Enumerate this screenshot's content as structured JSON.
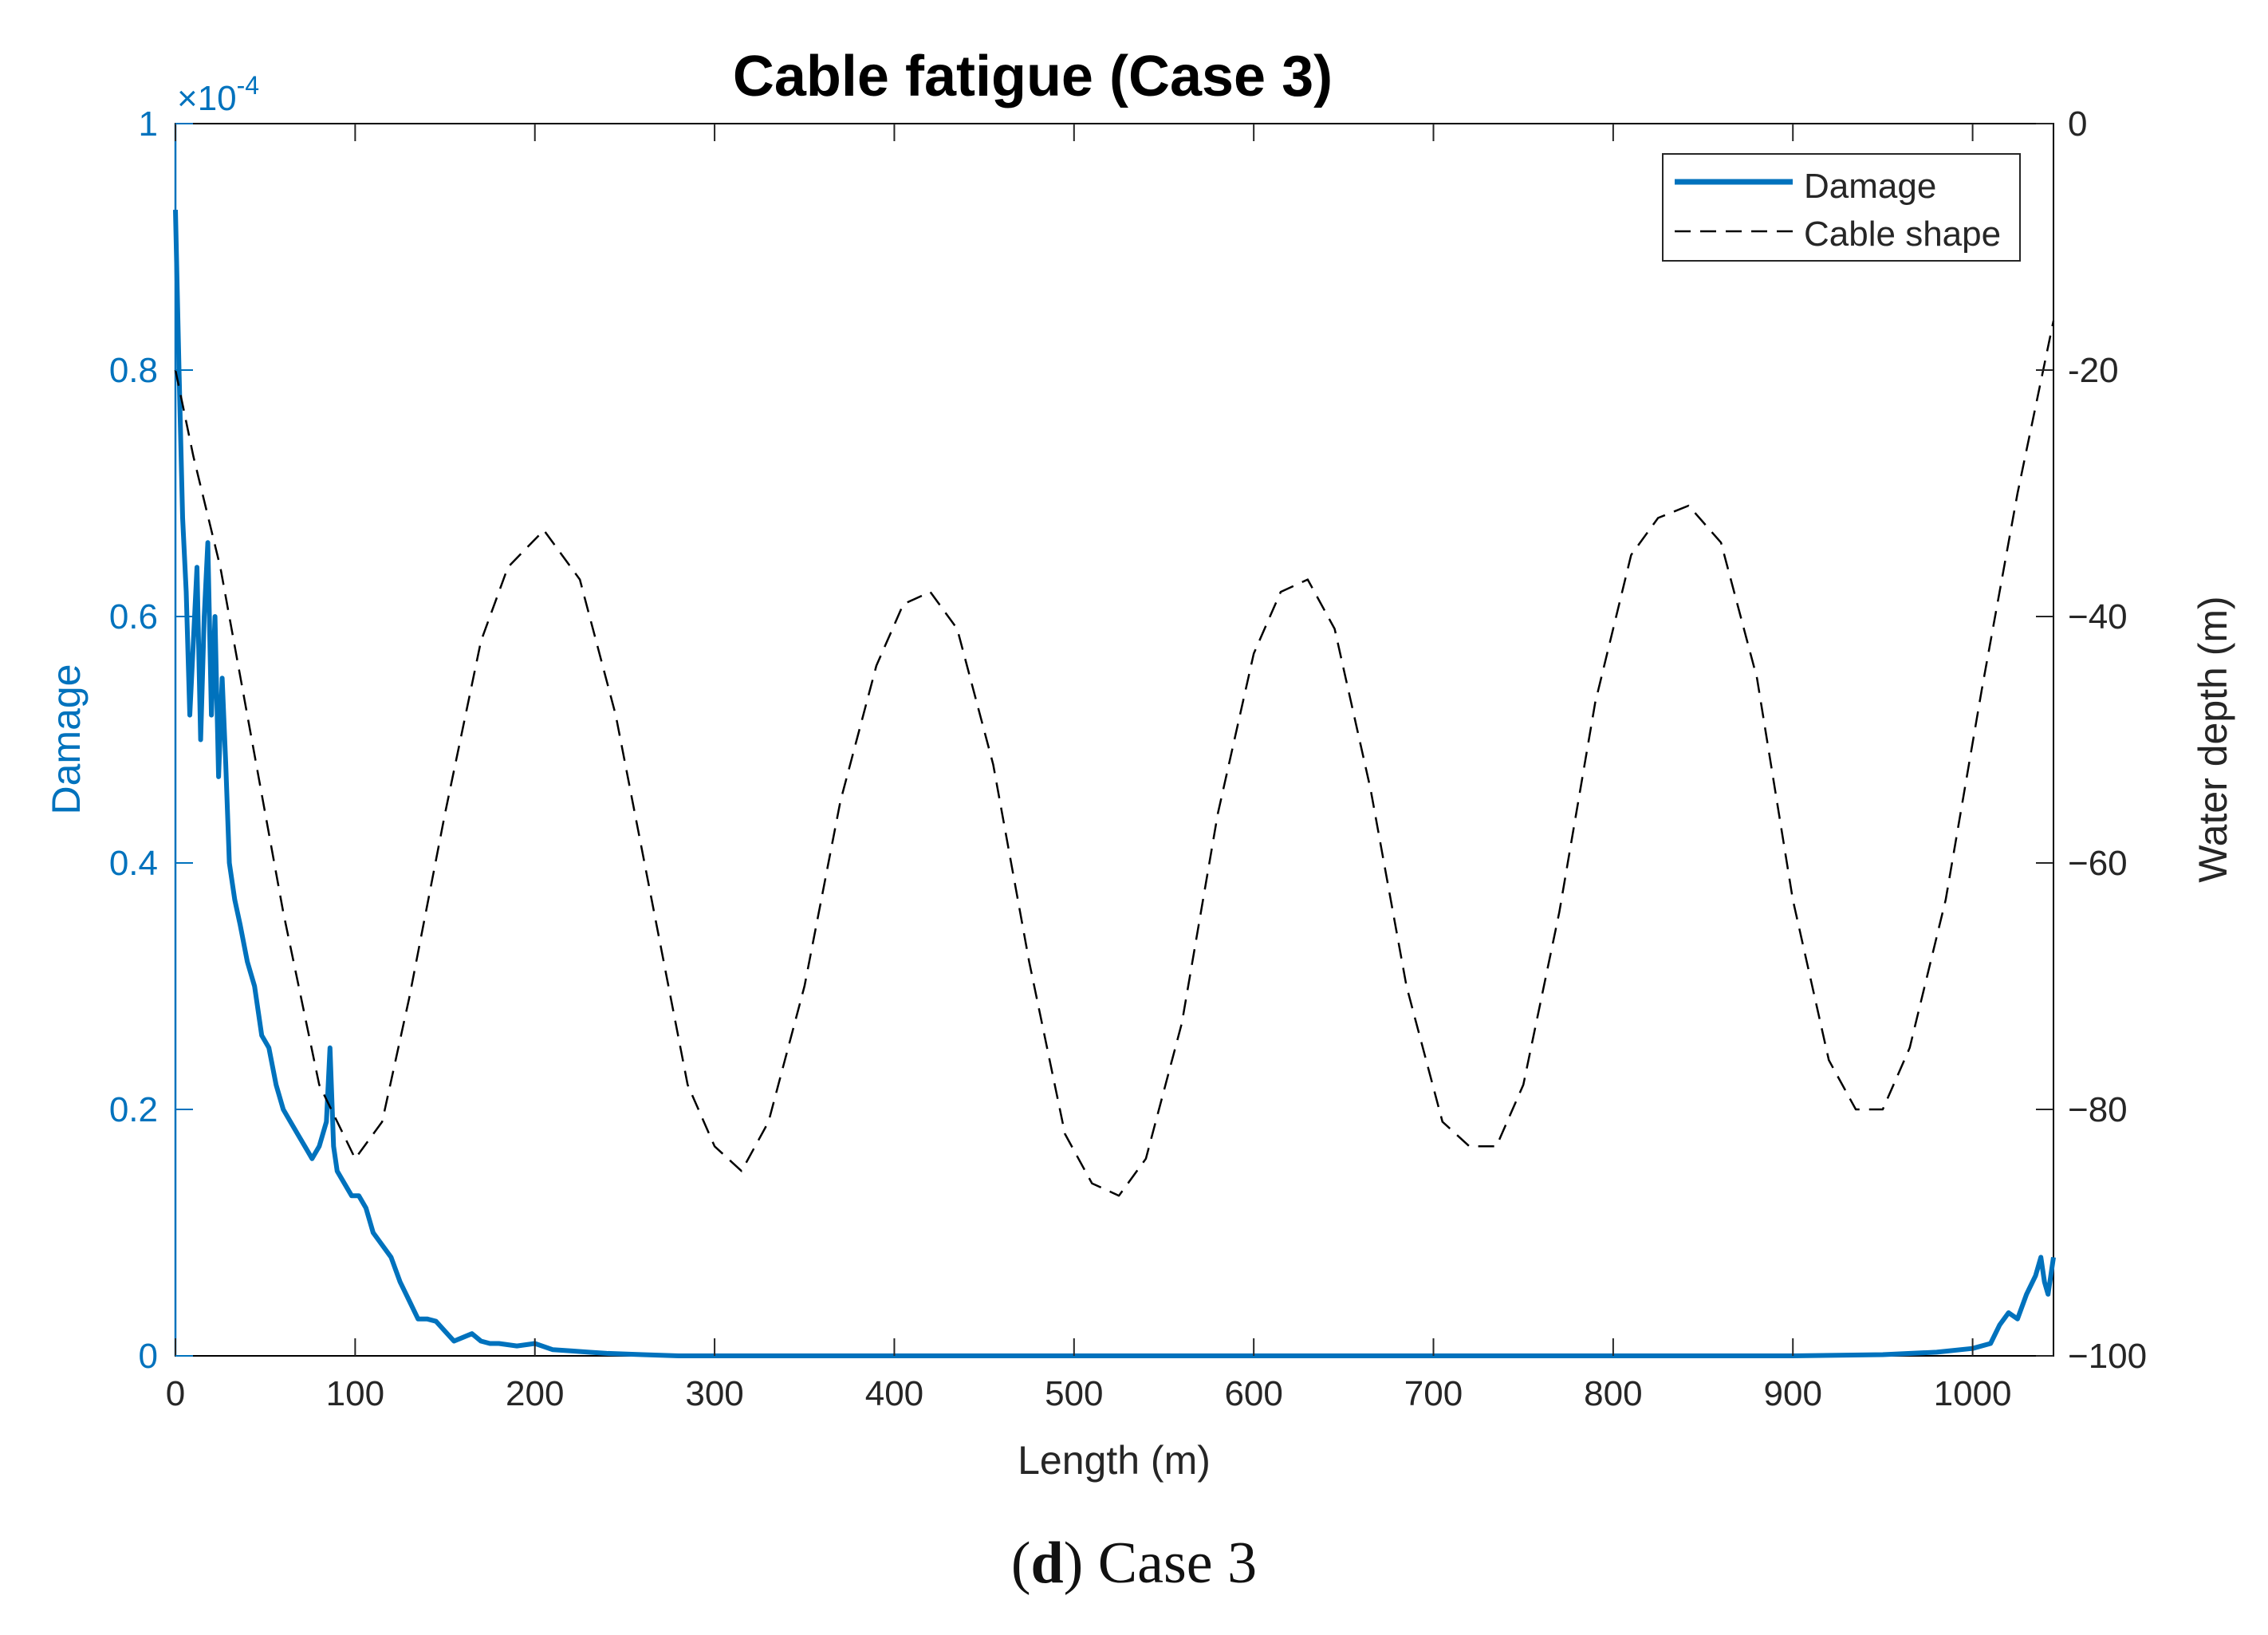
{
  "chart_data": {
    "type": "line",
    "title": "Cable fatigue (Case 3)",
    "xlabel": "Length (m)",
    "ylabel_left": "Damage",
    "ylabel_right": "Water depth (m)",
    "left_axis_exponent": "×10",
    "left_axis_exponent_power": "-4",
    "xlim": [
      0,
      1045
    ],
    "ylim_left": [
      0,
      1
    ],
    "ylim_right": [
      -100,
      0
    ],
    "x_ticks": [
      "0",
      "100",
      "200",
      "300",
      "400",
      "500",
      "600",
      "700",
      "800",
      "900",
      "1000"
    ],
    "y_left_ticks": [
      "0",
      "0.2",
      "0.4",
      "0.6",
      "0.8",
      "1"
    ],
    "y_right_ticks": [
      "−100",
      "−80",
      "−60",
      "−40",
      "-20",
      "0"
    ],
    "grid": false,
    "legend_position": "top-right",
    "colors": {
      "damage": "#0072BD",
      "cable_shape": "#000000",
      "axis_left": "#0072BD",
      "axis_right": "#000000"
    },
    "series": [
      {
        "name": "Damage",
        "axis": "left",
        "style": "solid",
        "x": [
          0,
          2,
          4,
          6,
          8,
          10,
          12,
          14,
          16,
          18,
          20,
          22,
          24,
          26,
          28,
          30,
          33,
          36,
          40,
          44,
          48,
          52,
          56,
          60,
          64,
          68,
          72,
          76,
          80,
          84,
          86,
          88,
          90,
          94,
          98,
          102,
          106,
          110,
          115,
          120,
          125,
          130,
          135,
          140,
          145,
          150,
          155,
          160,
          165,
          170,
          175,
          180,
          190,
          200,
          210,
          220,
          230,
          240,
          260,
          280,
          300,
          350,
          400,
          500,
          600,
          700,
          800,
          900,
          950,
          980,
          1000,
          1010,
          1015,
          1020,
          1025,
          1030,
          1035,
          1038,
          1040,
          1042,
          1045
        ],
        "values": [
          0.93,
          0.8,
          0.68,
          0.62,
          0.52,
          0.58,
          0.64,
          0.5,
          0.6,
          0.66,
          0.52,
          0.6,
          0.47,
          0.55,
          0.48,
          0.4,
          0.37,
          0.35,
          0.32,
          0.3,
          0.26,
          0.25,
          0.22,
          0.2,
          0.19,
          0.18,
          0.17,
          0.16,
          0.17,
          0.19,
          0.25,
          0.17,
          0.15,
          0.14,
          0.13,
          0.13,
          0.12,
          0.1,
          0.09,
          0.08,
          0.06,
          0.045,
          0.03,
          0.03,
          0.028,
          0.02,
          0.012,
          0.015,
          0.018,
          0.012,
          0.01,
          0.01,
          0.008,
          0.01,
          0.005,
          0.004,
          0.003,
          0.002,
          0.001,
          0.0,
          0.0,
          0.0,
          0.0,
          0.0,
          0.0,
          0.0,
          0.0,
          0.0,
          0.001,
          0.003,
          0.006,
          0.01,
          0.025,
          0.035,
          0.03,
          0.05,
          0.065,
          0.08,
          0.06,
          0.05,
          0.08
        ]
      },
      {
        "name": "Cable shape",
        "axis": "right",
        "style": "dashed",
        "x": [
          0,
          10,
          25,
          40,
          60,
          80,
          100,
          115,
          130,
          150,
          170,
          185,
          205,
          225,
          245,
          265,
          285,
          300,
          315,
          330,
          350,
          370,
          390,
          405,
          420,
          435,
          455,
          475,
          495,
          510,
          525,
          540,
          560,
          580,
          600,
          615,
          630,
          645,
          665,
          685,
          705,
          720,
          735,
          750,
          770,
          790,
          810,
          825,
          842,
          860,
          880,
          900,
          920,
          935,
          950,
          965,
          985,
          1005,
          1025,
          1045
        ],
        "values": [
          -20,
          -27,
          -36,
          -48,
          -64,
          -78,
          -84,
          -81,
          -71,
          -56,
          -42,
          -36,
          -33,
          -37,
          -48,
          -63,
          -78,
          -83,
          -85,
          -81,
          -70,
          -55,
          -44,
          -39,
          -38,
          -41,
          -52,
          -68,
          -82,
          -86,
          -87,
          -84,
          -73,
          -56,
          -43,
          -38,
          -37,
          -41,
          -54,
          -70,
          -81,
          -83,
          -83,
          -78,
          -64,
          -47,
          -35,
          -32,
          -31,
          -34,
          -45,
          -63,
          -76,
          -80,
          -80,
          -75,
          -63,
          -46,
          -30,
          -16
        ]
      }
    ]
  },
  "caption": {
    "letter": "d",
    "text": " Case 3"
  }
}
